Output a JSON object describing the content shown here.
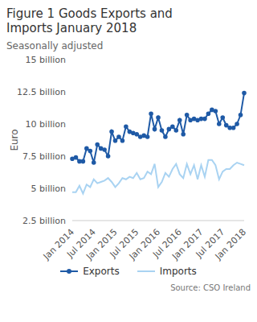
{
  "chart_data": {
    "type": "line",
    "title": "Figure 1 Goods Exports and Imports January 2018",
    "subtitle": "Seasonally adjusted",
    "y_label": "Euro",
    "source": "Source: CSO Ireland",
    "categories": [
      "Jan 2014",
      null,
      null,
      null,
      null,
      null,
      "Jul 2014",
      null,
      null,
      null,
      null,
      null,
      "Jan 2015",
      null,
      null,
      null,
      null,
      null,
      "Jul 2015",
      null,
      null,
      null,
      null,
      null,
      "Jan 2016",
      null,
      null,
      null,
      null,
      null,
      "Jul 2016",
      null,
      null,
      null,
      null,
      null,
      "Jan 2017",
      null,
      null,
      null,
      null,
      null,
      "Jul 2017",
      null,
      null,
      null,
      null,
      null,
      "Jan 2018"
    ],
    "series": [
      {
        "name": "Exports",
        "color": "#1f5aa6",
        "marker": "circle",
        "values": [
          7.3,
          7.4,
          7.1,
          7.1,
          8.1,
          7.9,
          7.0,
          8.4,
          8.1,
          8.0,
          7.5,
          9.4,
          8.7,
          9.0,
          8.7,
          9.8,
          9.4,
          9.3,
          9.2,
          9.0,
          9.1,
          9.0,
          10.8,
          9.6,
          10.5,
          9.5,
          9.0,
          9.6,
          9.8,
          9.5,
          10.3,
          9.2,
          10.7,
          10.3,
          10.4,
          10.3,
          10.4,
          10.4,
          10.8,
          11.1,
          11.0,
          10.0,
          10.5,
          9.9,
          9.7,
          9.7,
          10.0,
          10.7,
          12.4
        ]
      },
      {
        "name": "Imports",
        "color": "#a9d3f2",
        "marker": "none",
        "values": [
          4.7,
          4.7,
          5.2,
          4.6,
          5.3,
          5.1,
          5.7,
          5.4,
          5.5,
          5.6,
          5.8,
          5.5,
          5.1,
          5.4,
          5.8,
          5.7,
          5.9,
          5.8,
          6.2,
          5.7,
          5.8,
          6.3,
          6.1,
          6.9,
          5.1,
          5.5,
          6.2,
          5.9,
          6.5,
          6.9,
          6.1,
          5.8,
          6.9,
          6.1,
          6.8,
          5.7,
          6.8,
          5.9,
          7.2,
          7.2,
          6.8,
          5.7,
          6.3,
          6.5,
          6.5,
          6.8,
          7.0,
          6.9,
          6.8
        ]
      }
    ],
    "ylim": [
      2.5,
      15
    ],
    "yticks": [
      {
        "value": 2.5,
        "label": "2.5 billion"
      },
      {
        "value": 5,
        "label": "5 billion"
      },
      {
        "value": 7.5,
        "label": "7.5 billion"
      },
      {
        "value": 10,
        "label": "10 billion"
      },
      {
        "value": 12.5,
        "label": "12.5 billion"
      },
      {
        "value": 15,
        "label": "15 billion"
      }
    ],
    "grid": false,
    "legend": "bottom"
  }
}
